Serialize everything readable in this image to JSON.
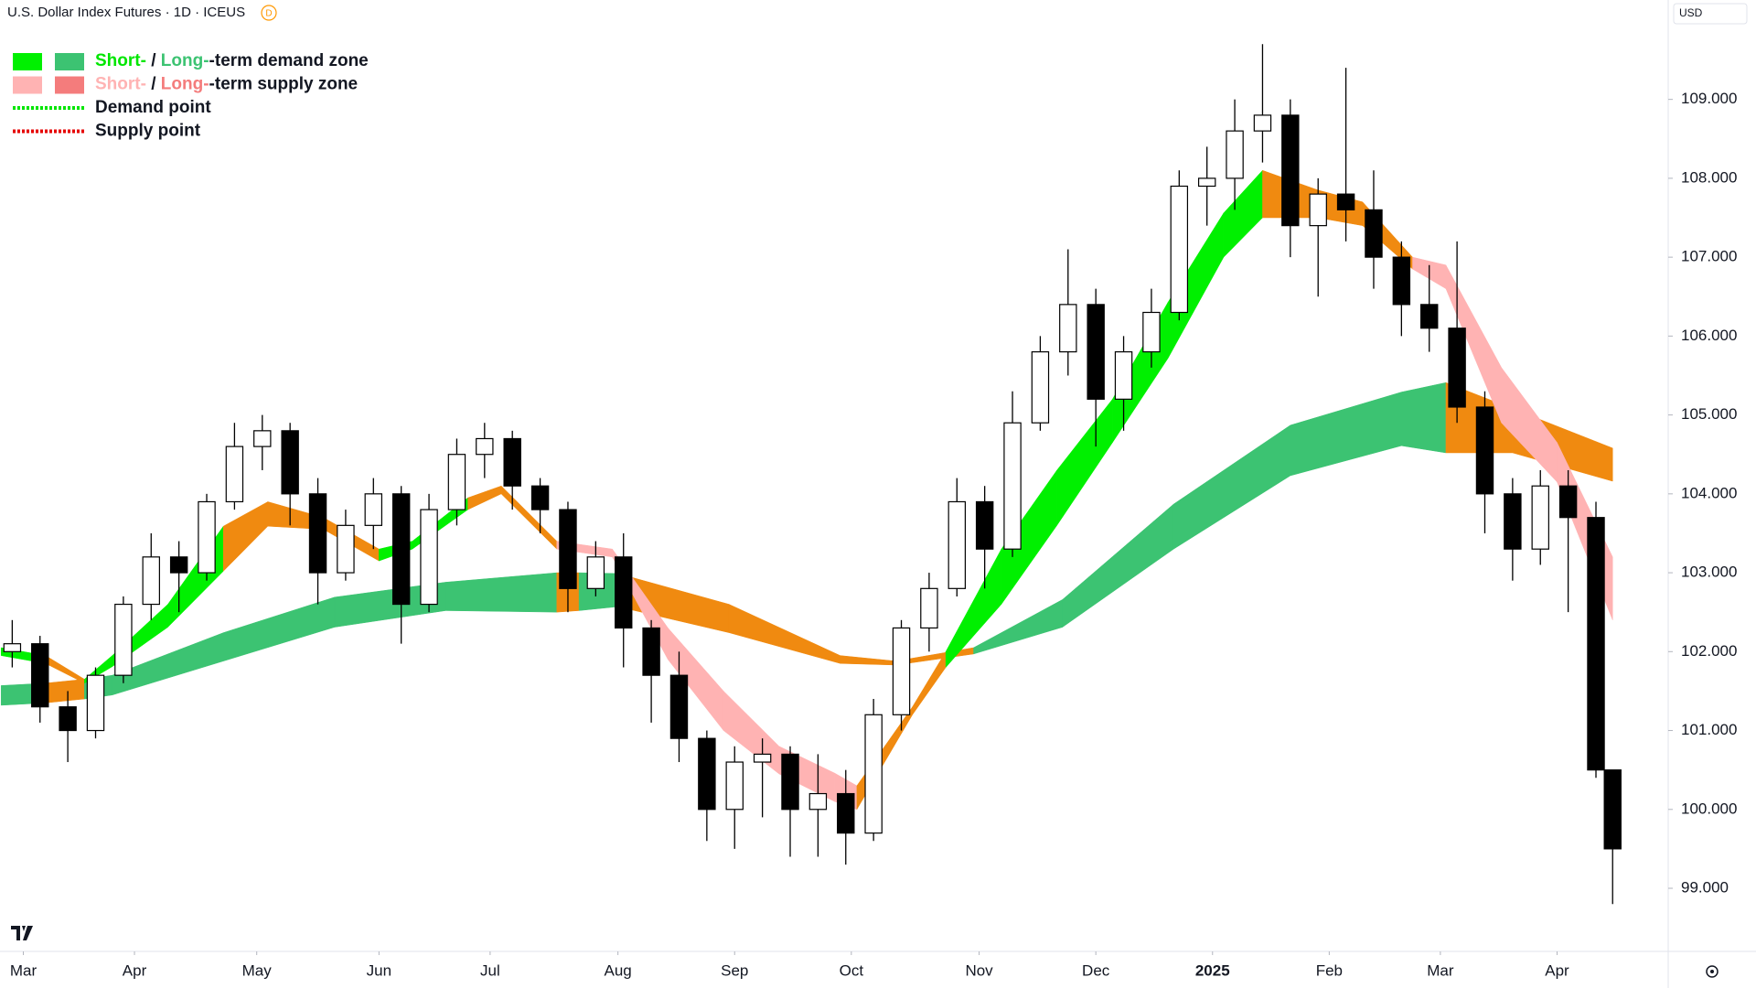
{
  "chart_data": {
    "type": "candlestick",
    "title": "U.S. Dollar Index Futures · 1D · ICEUS",
    "badge": "D",
    "currency": "USD",
    "xlim": [
      -4.2,
      296
    ],
    "ylim": [
      98.2,
      110.26
    ],
    "xticks": [
      {
        "value": 0,
        "label": "Mar"
      },
      {
        "value": 20,
        "label": "Apr"
      },
      {
        "value": 42,
        "label": "May"
      },
      {
        "value": 64,
        "label": "Jun"
      },
      {
        "value": 84,
        "label": "Jul"
      },
      {
        "value": 107,
        "label": "Aug"
      },
      {
        "value": 128,
        "label": "Sep"
      },
      {
        "value": 149,
        "label": "Oct"
      },
      {
        "value": 172,
        "label": "Nov"
      },
      {
        "value": 193,
        "label": "Dec"
      },
      {
        "value": 214,
        "label": "2025",
        "bold": true
      },
      {
        "value": 235,
        "label": "Feb"
      },
      {
        "value": 255,
        "label": "Mar"
      },
      {
        "value": 276,
        "label": "Apr"
      }
    ],
    "yticks": [
      {
        "value": 99,
        "label": "99.000"
      },
      {
        "value": 100,
        "label": "100.000"
      },
      {
        "value": 101,
        "label": "101.000"
      },
      {
        "value": 102,
        "label": "102.000"
      },
      {
        "value": 103,
        "label": "103.000"
      },
      {
        "value": 104,
        "label": "104.000"
      },
      {
        "value": 105,
        "label": "105.000"
      },
      {
        "value": 106,
        "label": "106.000"
      },
      {
        "value": 107,
        "label": "107.000"
      },
      {
        "value": 108,
        "label": "108.000"
      },
      {
        "value": 109,
        "label": "109.000"
      }
    ],
    "up_color": "#ffffff",
    "down_color": "#000000",
    "x": [
      -2,
      3,
      8,
      13,
      18,
      23,
      28,
      33,
      38,
      43,
      48,
      53,
      58,
      63,
      68,
      73,
      78,
      83,
      88,
      93,
      98,
      103,
      108,
      113,
      118,
      123,
      128,
      133,
      138,
      143,
      148,
      153,
      158,
      163,
      168,
      173,
      178,
      183,
      188,
      193,
      198,
      203,
      208,
      213,
      218,
      223,
      228,
      233,
      238,
      243,
      248,
      253,
      258,
      263,
      268,
      273,
      278,
      283,
      286
    ],
    "open": [
      102.0,
      102.1,
      101.3,
      101.0,
      101.7,
      102.6,
      103.2,
      103.0,
      103.9,
      104.6,
      104.8,
      104.0,
      103.0,
      103.6,
      104.0,
      102.6,
      103.8,
      104.5,
      104.7,
      104.1,
      103.8,
      102.8,
      103.2,
      102.3,
      101.7,
      100.9,
      100.0,
      100.6,
      100.7,
      100.0,
      100.2,
      99.7,
      101.2,
      102.3,
      102.8,
      103.9,
      103.3,
      104.9,
      105.8,
      106.4,
      105.2,
      105.8,
      106.3,
      107.9,
      108.0,
      108.6,
      108.8,
      107.4,
      107.8,
      107.6,
      107.0,
      106.4,
      106.1,
      105.1,
      104.0,
      103.3,
      104.1,
      103.7,
      100.5
    ],
    "high": [
      102.4,
      102.2,
      101.5,
      101.8,
      102.7,
      103.5,
      103.4,
      104.0,
      104.9,
      105.0,
      104.9,
      104.2,
      103.8,
      104.2,
      104.1,
      104.0,
      104.7,
      104.9,
      104.8,
      104.2,
      103.9,
      103.4,
      103.5,
      102.4,
      102.0,
      101.0,
      100.8,
      100.9,
      100.8,
      100.7,
      100.5,
      101.4,
      102.4,
      103.0,
      104.2,
      104.1,
      105.3,
      106.0,
      107.1,
      106.6,
      106.0,
      106.6,
      108.1,
      108.4,
      109.0,
      109.7,
      109.0,
      108.0,
      109.4,
      108.1,
      107.2,
      106.9,
      107.2,
      105.3,
      104.2,
      104.3,
      104.3,
      103.9,
      100.5
    ],
    "low": [
      101.8,
      101.1,
      100.6,
      100.9,
      101.6,
      102.4,
      102.5,
      102.9,
      103.8,
      104.3,
      103.6,
      102.6,
      102.9,
      103.3,
      102.1,
      102.5,
      103.6,
      104.2,
      103.8,
      103.5,
      102.5,
      102.7,
      101.8,
      101.1,
      100.6,
      99.6,
      99.5,
      99.9,
      99.4,
      99.4,
      99.3,
      99.6,
      101.0,
      102.0,
      102.7,
      102.8,
      103.2,
      104.8,
      105.5,
      104.6,
      104.8,
      105.6,
      106.2,
      107.4,
      107.6,
      108.2,
      107.0,
      106.5,
      107.2,
      106.6,
      106.0,
      105.8,
      104.9,
      103.5,
      102.9,
      103.1,
      102.5,
      100.4,
      98.8
    ],
    "close": [
      102.1,
      101.3,
      101.0,
      101.7,
      102.6,
      103.2,
      103.0,
      103.9,
      104.6,
      104.8,
      104.0,
      103.0,
      103.6,
      104.0,
      102.6,
      103.8,
      104.5,
      104.7,
      104.1,
      103.8,
      102.8,
      103.2,
      102.3,
      101.7,
      100.9,
      100.0,
      100.6,
      100.7,
      100.0,
      100.2,
      99.7,
      101.2,
      102.3,
      102.8,
      103.9,
      103.3,
      104.9,
      105.8,
      106.4,
      105.2,
      105.8,
      106.3,
      107.9,
      108.0,
      108.6,
      108.8,
      107.4,
      107.8,
      107.6,
      107.0,
      106.4,
      106.1,
      105.1,
      104.0,
      103.3,
      104.1,
      103.7,
      100.5,
      99.5
    ],
    "bands": [
      {
        "x": [
          -4,
          4,
          11,
          16,
          36,
          56,
          76,
          96,
          100,
          107,
          127,
          147,
          157,
          171,
          187,
          207,
          228,
          248,
          256,
          268,
          286
        ],
        "upper": [
          101.57,
          101.6,
          101.65,
          101.7,
          102.24,
          102.69,
          102.88,
          103.0,
          103.0,
          102.99,
          102.6,
          101.95,
          101.88,
          102.05,
          102.66,
          103.87,
          104.87,
          105.29,
          105.41,
          105.08,
          104.58
        ],
        "lower": [
          101.32,
          101.35,
          101.4,
          101.45,
          101.88,
          102.31,
          102.52,
          102.5,
          102.52,
          102.57,
          102.24,
          101.85,
          101.83,
          101.97,
          102.31,
          103.3,
          104.23,
          104.61,
          104.52,
          104.52,
          104.16
        ],
        "colors": [
          "#3cc372",
          "#f08a10",
          "#3cc372",
          "#3cc372",
          "#3cc372",
          "#3cc372",
          "#3cc372",
          "#f08a10",
          "#3cc372",
          "#f08a10",
          "#f08a10",
          "#f08a10",
          "#f08a10",
          "#3cc372",
          "#3cc372",
          "#3cc372",
          "#3cc372",
          "#3cc372",
          "#f08a10",
          "#f08a10"
        ]
      },
      {
        "x": [
          -4,
          4,
          11,
          16,
          26,
          36,
          44,
          54,
          64,
          70,
          80,
          86,
          96,
          106,
          116,
          126,
          136,
          146,
          150,
          160,
          166,
          176,
          186,
          196,
          206,
          216,
          223,
          233,
          241,
          250,
          256,
          266,
          276,
          286
        ],
        "upper": [
          102.05,
          101.95,
          101.65,
          101.95,
          102.6,
          103.59,
          103.9,
          103.7,
          103.3,
          103.4,
          103.95,
          104.1,
          103.4,
          103.3,
          102.3,
          101.5,
          100.8,
          100.46,
          100.3,
          101.3,
          102.0,
          103.3,
          104.3,
          105.2,
          106.43,
          107.56,
          108.1,
          107.85,
          107.7,
          107.0,
          106.9,
          105.6,
          104.65,
          103.2
        ],
        "lower": [
          101.95,
          101.85,
          101.6,
          101.81,
          102.31,
          103.02,
          103.59,
          103.55,
          103.15,
          103.3,
          103.8,
          104.0,
          103.3,
          103.2,
          101.9,
          101.0,
          100.45,
          100.1,
          100.0,
          101.2,
          101.8,
          102.6,
          103.6,
          104.65,
          105.72,
          107.0,
          107.5,
          107.5,
          107.4,
          106.85,
          106.6,
          104.9,
          104.15,
          102.4
        ],
        "colors": [
          "#00f000",
          "#f08a10",
          "#00f000",
          "#00f000",
          "#00f000",
          "#f08a10",
          "#f08a10",
          "#f08a10",
          "#00f000",
          "#00f000",
          "#f08a10",
          "#f08a10",
          "#ffb3b3",
          "#ffb3b3",
          "#ffb3b3",
          "#ffb3b3",
          "#ffb3b3",
          "#ffb3b3",
          "#f08a10",
          "#f08a10",
          "#00f000",
          "#00f000",
          "#00f000",
          "#00f000",
          "#00f000",
          "#00f000",
          "#f08a10",
          "#f08a10",
          "#f08a10",
          "#ffb3b3",
          "#ffb3b3",
          "#ffb3b3",
          "#ffb3b3"
        ]
      }
    ],
    "legend": [
      {
        "swatches": [
          "#00f000",
          "#3cc372"
        ],
        "parts": [
          {
            "text": "Short-",
            "color": "#00e600"
          },
          {
            "text": " / "
          },
          {
            "text": "Long-",
            "color": "#3cc372"
          },
          {
            "text": "-term demand zone"
          }
        ]
      },
      {
        "swatches": [
          "#ffb3b3",
          "#f47c7c"
        ],
        "parts": [
          {
            "text": "Short-",
            "color": "#ffb3b3"
          },
          {
            "text": " / "
          },
          {
            "text": "Long-",
            "color": "#f47c7c"
          },
          {
            "text": "-term supply zone"
          }
        ]
      },
      {
        "line": "#00e600",
        "parts": [
          {
            "text": "Demand point"
          }
        ]
      },
      {
        "line": "#e60000",
        "parts": [
          {
            "text": "Supply point"
          }
        ]
      }
    ]
  }
}
